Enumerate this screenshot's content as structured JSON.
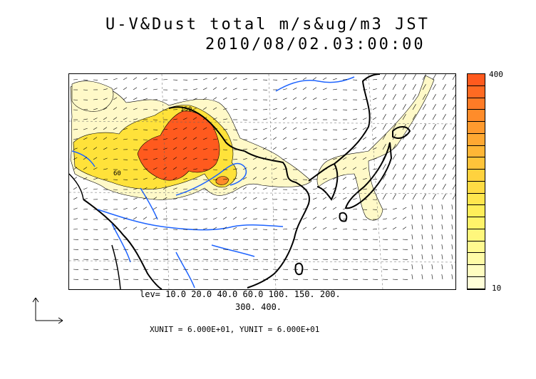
{
  "title": {
    "line1": "U-V&Dust total m/s&ug/m3 JST",
    "line2": "2010/08/02.03:00:00"
  },
  "colorbar": {
    "max_label": "400",
    "min_label": "10",
    "colors": [
      "#ff5a1e",
      "#ff6a22",
      "#ff7b26",
      "#ff8c2a",
      "#ff9a2e",
      "#ffa832",
      "#ffb636",
      "#ffc43a",
      "#ffd23e",
      "#ffdc44",
      "#ffe64e",
      "#ffee5a",
      "#fff36a",
      "#fff77c",
      "#fffa90",
      "#fffca6",
      "#fffdc0",
      "#fffed8"
    ]
  },
  "contour_legend": {
    "line1": "lev= 10.0 20.0 40.0 60.0 100. 150. 200.",
    "line2": "300. 400."
  },
  "units_text": "XUNIT = 6.000E+01, YUNIT = 6.000E+01",
  "map_labels": {
    "label_a": "150",
    "label_b": "60"
  },
  "colors": {
    "coast": "#000000",
    "river": "#1e64ff",
    "dust_low": "#fff9c8",
    "dust_mid": "#ffe23a",
    "dust_high": "#ff5a1e"
  }
}
